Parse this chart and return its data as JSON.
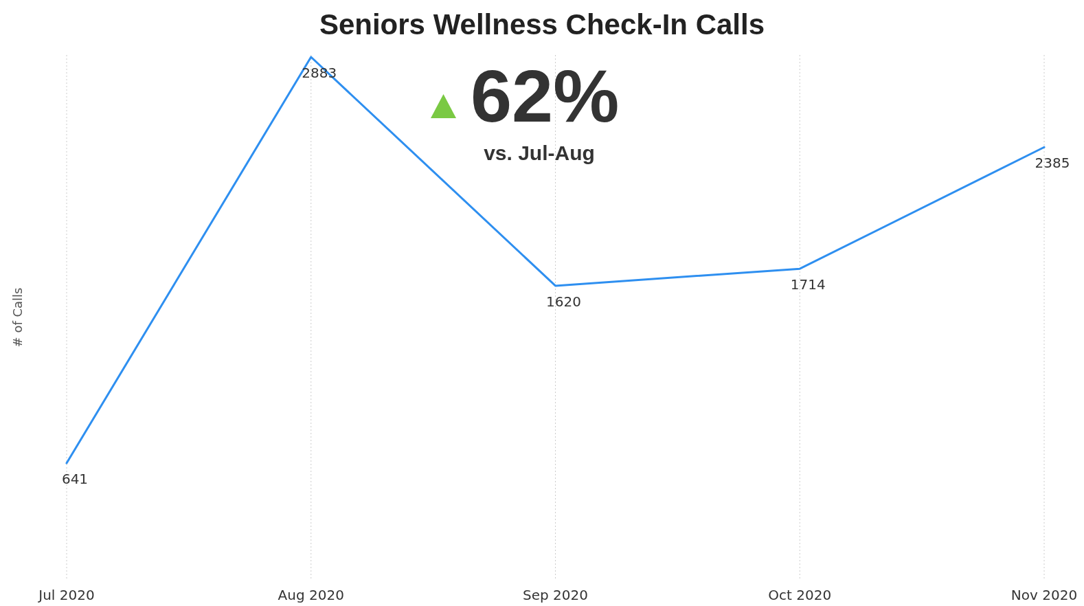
{
  "chart_data": {
    "type": "line",
    "title": "Seniors Wellness Check-In Calls",
    "ylabel": "# of Calls",
    "categories": [
      "Jul 2020",
      "Aug 2020",
      "Sep 2020",
      "Oct 2020",
      "Nov 2020"
    ],
    "series": [
      {
        "color": "#2e8ff0",
        "values": [
          641,
          2883,
          1620,
          1714,
          2385
        ]
      }
    ],
    "data_labels": true,
    "grid": "x",
    "marker": "none",
    "line_style": "solid",
    "annotations": [
      "62%",
      "vs. Jul-Aug"
    ]
  }
}
